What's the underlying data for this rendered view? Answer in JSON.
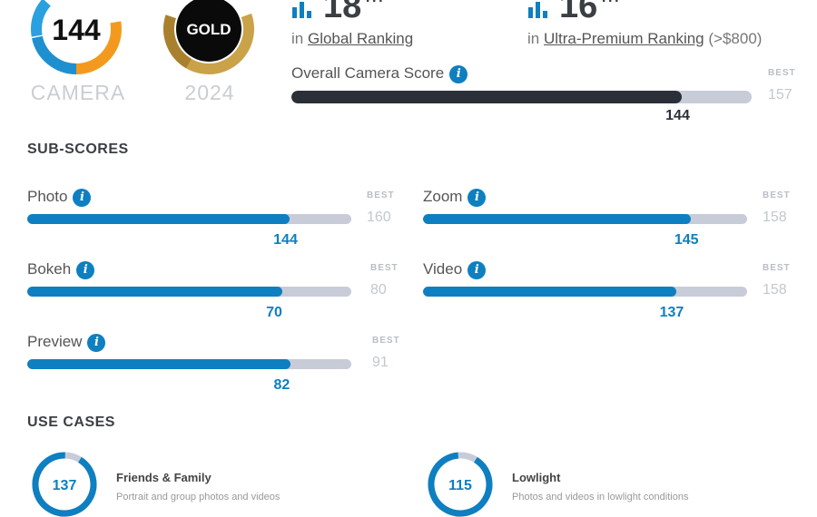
{
  "badges": {
    "camera_score": "144",
    "camera_label": "CAMERA",
    "gold_label": "GOLD",
    "year": "2024"
  },
  "rankings": [
    {
      "rank": "18",
      "suffix": "TH",
      "prefix": "in",
      "link": "Global Ranking",
      "extra": ""
    },
    {
      "rank": "16",
      "suffix": "TH",
      "prefix": "in",
      "link": "Ultra-Premium Ranking",
      "extra": "(>$800)"
    }
  ],
  "overall": {
    "title": "Overall Camera Score",
    "best_label": "BEST",
    "best": 157,
    "score": 144,
    "color": "#2b2f38"
  },
  "subscores": {
    "title": "SUB-SCORES",
    "best_label": "BEST",
    "items": [
      {
        "label": "Photo",
        "score": 144,
        "best": 160
      },
      {
        "label": "Zoom",
        "score": 145,
        "best": 158
      },
      {
        "label": "Bokeh",
        "score": 70,
        "best": 80
      },
      {
        "label": "Video",
        "score": 137,
        "best": 158
      },
      {
        "label": "Preview",
        "score": 82,
        "best": 91
      }
    ],
    "color": "#0e7fc0"
  },
  "use_cases": {
    "title": "USE CASES",
    "items": [
      {
        "score": 137,
        "best": 150,
        "title": "Friends & Family",
        "desc": "Portrait and group photos and videos"
      },
      {
        "score": 115,
        "best": 128,
        "title": "Lowlight",
        "desc": "Photos and videos in lowlight conditions"
      }
    ]
  },
  "colors": {
    "accent": "#0e7fc0",
    "dark_bar": "#2b2f38",
    "track": "#c8ccd9",
    "gold": "#c9a24a"
  },
  "icons": [
    "bar-chart-icon",
    "info-icon"
  ]
}
